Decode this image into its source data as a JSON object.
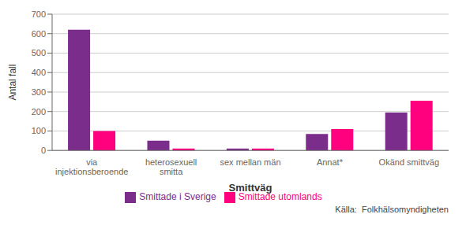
{
  "chart_data": {
    "type": "bar",
    "categories": [
      "via\ninjektionsberoende",
      "heterosexuell\nsmitta",
      "sex mellan män",
      "Annat*",
      "Okänd smittväg"
    ],
    "series": [
      {
        "name": "Smittade i Sverige",
        "color": "#7b2d8b",
        "values": [
          620,
          50,
          10,
          85,
          195
        ]
      },
      {
        "name": "Smittade utomlands",
        "color": "#ff007f",
        "values": [
          100,
          10,
          10,
          110,
          255
        ]
      }
    ],
    "xlabel": "Smittväg",
    "ylabel": "Antal fall",
    "ylim": [
      0,
      700
    ],
    "yticks": [
      0,
      100,
      200,
      300,
      400,
      500,
      600,
      700
    ],
    "grid": true,
    "legend": "bottom",
    "annotations": [
      "Källa:  Folkhälsomyndigheten"
    ]
  }
}
